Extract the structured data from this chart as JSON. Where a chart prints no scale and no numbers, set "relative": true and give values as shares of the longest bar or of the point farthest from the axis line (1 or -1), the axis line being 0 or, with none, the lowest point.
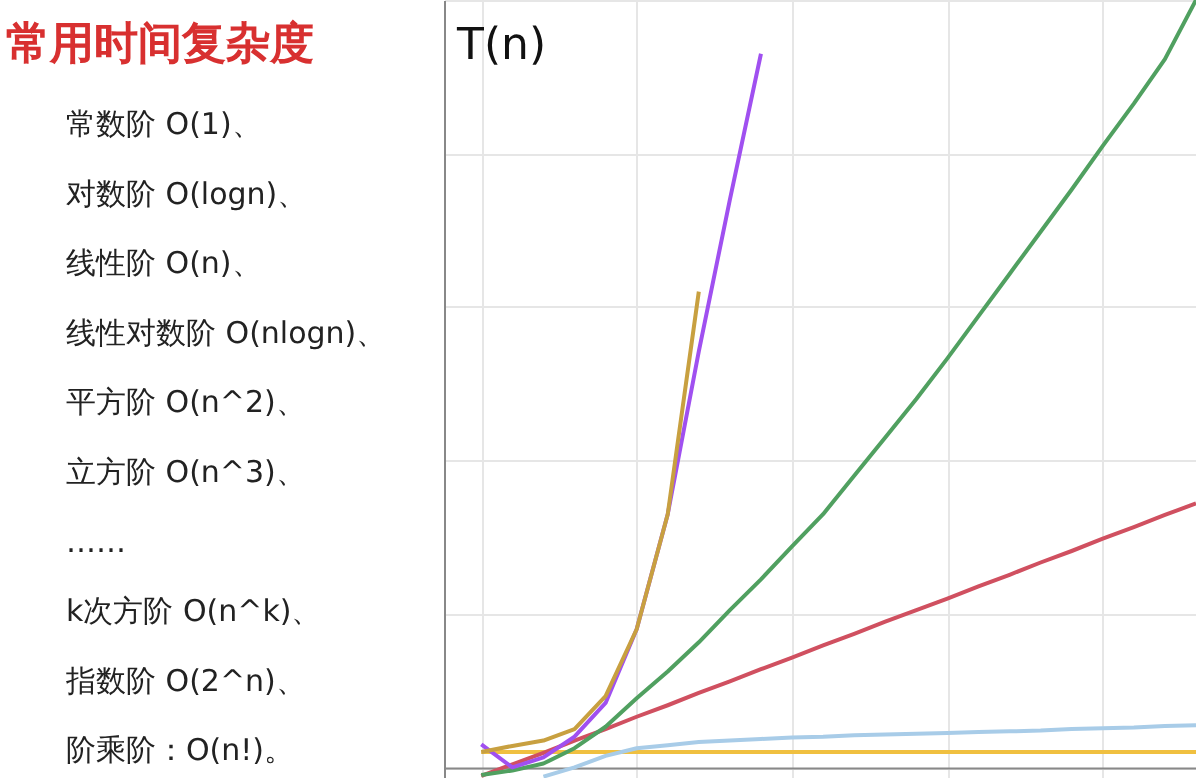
{
  "chart_data": {
    "type": "line",
    "relative": true,
    "title": "常用时间复杂度",
    "ylabel": "T(n)",
    "grid": true,
    "legend": false,
    "marker": "none",
    "line_style": "solid",
    "categories": [
      null,
      null,
      null,
      null,
      null,
      null,
      null,
      null,
      null,
      null,
      null,
      null,
      null,
      null,
      null,
      null,
      null,
      null,
      null,
      null,
      null,
      null,
      null,
      null
    ],
    "series": [
      {
        "color": "#f0c040",
        "values": [
          0.02,
          0.02,
          0.02,
          0.02,
          0.02,
          0.02,
          0.02,
          0.02,
          0.02,
          0.02,
          0.02,
          0.02,
          0.02,
          0.02,
          0.02,
          0.02,
          0.02,
          0.02,
          0.02,
          0.02,
          0.02,
          0.02,
          0.02,
          0.02
        ]
      },
      {
        "color": "#a8cce8",
        "values": [
          null,
          null,
          -0.012,
          0.0,
          0.015,
          0.025,
          0.029,
          0.033,
          0.035,
          0.037,
          0.039,
          0.04,
          0.042,
          0.043,
          0.044,
          0.045,
          0.046,
          0.047,
          0.048,
          0.05,
          0.051,
          0.052,
          0.054,
          0.055
        ]
      },
      {
        "color": "#d05060",
        "values": [
          -0.011,
          0.004,
          0.019,
          0.035,
          0.05,
          0.066,
          0.081,
          0.097,
          0.112,
          0.128,
          0.143,
          0.159,
          0.174,
          0.19,
          0.205,
          0.22,
          0.236,
          0.251,
          0.267,
          0.282,
          0.298,
          0.313,
          0.329,
          0.344
        ]
      },
      {
        "color": "#50a060",
        "values": [
          -0.01,
          -0.004,
          0.005,
          0.025,
          0.053,
          0.09,
          0.125,
          0.163,
          0.205,
          0.245,
          0.288,
          0.33,
          0.38,
          0.43,
          0.48,
          0.533,
          0.588,
          0.643,
          0.698,
          0.753,
          0.81,
          0.865,
          0.923,
          1.0
        ]
      },
      {
        "color": "#a050f0",
        "values": [
          0.03,
          0.0,
          0.013,
          0.04,
          0.084,
          0.18,
          0.33,
          0.542,
          0.74,
          0.93,
          null,
          null,
          null,
          null,
          null,
          null,
          null,
          null,
          null,
          null,
          null,
          null,
          null,
          null
        ]
      },
      {
        "color": "#c8a040",
        "values": [
          0.02,
          0.028,
          0.035,
          0.05,
          0.093,
          0.18,
          0.33,
          0.62,
          null,
          null,
          null,
          null,
          null,
          null,
          null,
          null,
          null,
          null,
          null,
          null,
          null,
          null,
          null,
          null
        ]
      }
    ],
    "annotations": [
      "常数阶 O(1)、",
      "对数阶 O(logn)、",
      "线性阶 O(n)、",
      "线性对数阶 O(nlogn)、",
      "平方阶 O(n^2)、",
      "立方阶 O(n^3)、",
      "……",
      "k次方阶 O(n^k)、",
      "指数阶 O(2^n)、",
      "阶乘阶：O(n!)。"
    ]
  }
}
